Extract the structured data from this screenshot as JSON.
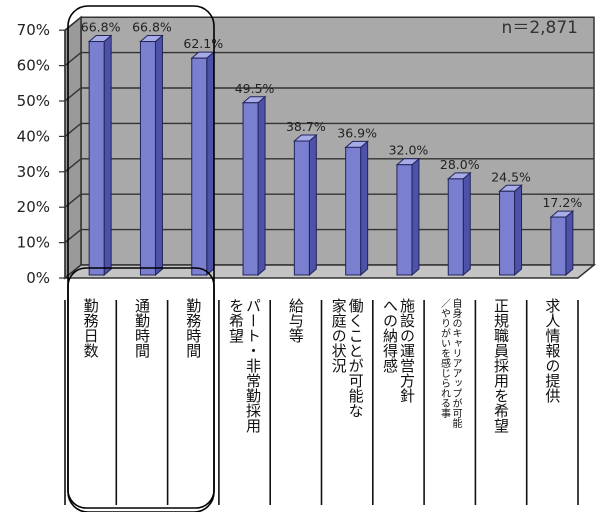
{
  "chart_data": {
    "type": "bar",
    "title": "",
    "xlabel": "",
    "ylabel": "",
    "ylim": [
      0,
      70
    ],
    "yticks": [
      "0%",
      "10%",
      "20%",
      "30%",
      "40%",
      "50%",
      "60%",
      "70%"
    ],
    "annotation": "n＝2,871",
    "categories": [
      [
        "勤務日数"
      ],
      [
        "通勤時間"
      ],
      [
        "勤務時間"
      ],
      [
        "パート・非常勤採用",
        "を希望"
      ],
      [
        "給与等"
      ],
      [
        "働くことが可能な",
        "家庭の状況"
      ],
      [
        "施設の運営方針",
        "への納得感"
      ],
      [
        "自身のキャリアアップが可能",
        "／やりがいを感じられる事"
      ],
      [
        "正規職員採用を希望"
      ],
      [
        "求人情報の提供"
      ]
    ],
    "values": [
      66.8,
      66.8,
      62.1,
      49.5,
      38.7,
      36.9,
      32.0,
      28.0,
      24.5,
      17.2
    ],
    "value_labels": [
      "66.8%",
      "66.8%",
      "62.1%",
      "49.5%",
      "38.7%",
      "36.9%",
      "32.0%",
      "28.0%",
      "24.5%",
      "17.2%"
    ],
    "bar_color": "#7a7fd0",
    "grid": true,
    "highlight": "first three categories circled"
  }
}
